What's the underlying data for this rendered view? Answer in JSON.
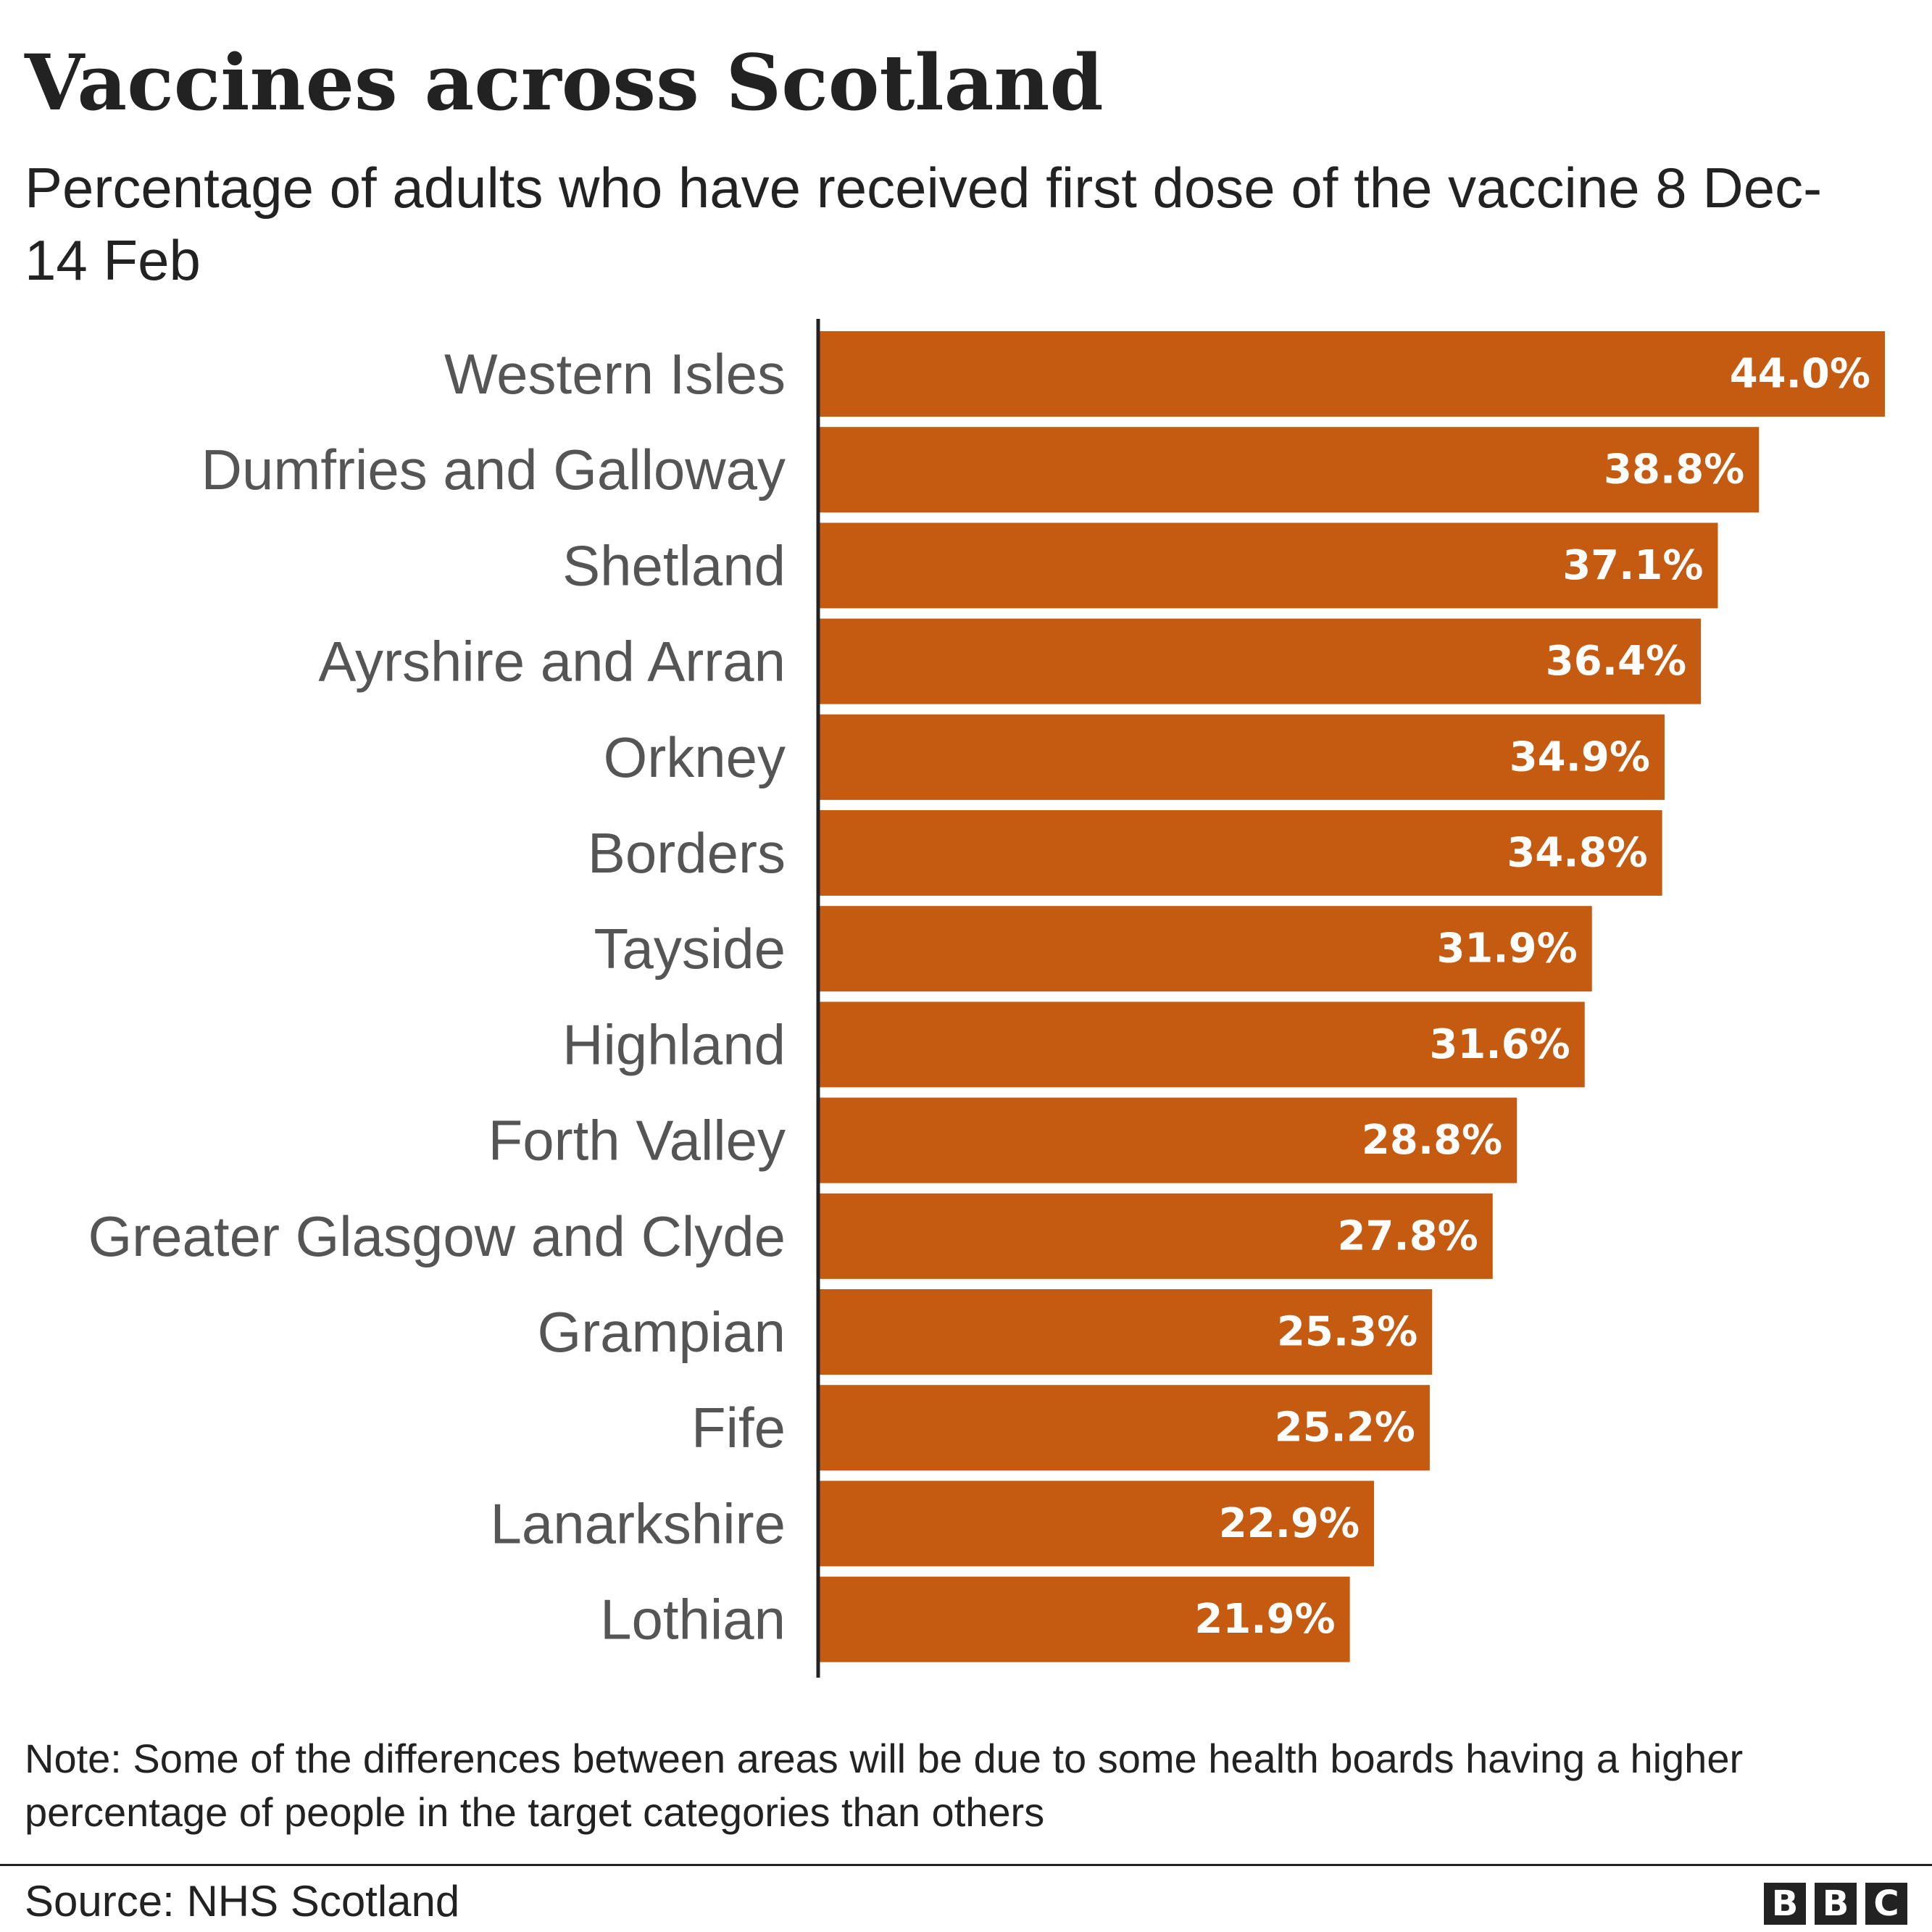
{
  "chart_data": {
    "type": "bar",
    "orientation": "horizontal",
    "title": "Vaccines across Scotland",
    "subtitle": "Percentage of adults who have received first dose of the vaccine 8 Dec-14 Feb",
    "categories": [
      "Western Isles",
      "Dumfries and Galloway",
      "Shetland",
      "Ayrshire and Arran",
      "Orkney",
      "Borders",
      "Tayside",
      "Highland",
      "Forth Valley",
      "Greater Glasgow and Clyde",
      "Grampian",
      "Fife",
      "Lanarkshire",
      "Lothian"
    ],
    "values": [
      44.0,
      38.8,
      37.1,
      36.4,
      34.9,
      34.8,
      31.9,
      31.6,
      28.8,
      27.8,
      25.3,
      25.2,
      22.9,
      21.9
    ],
    "value_labels": [
      "44.0%",
      "38.8%",
      "37.1%",
      "36.4%",
      "34.9%",
      "34.8%",
      "31.9%",
      "31.6%",
      "28.8%",
      "27.8%",
      "25.3%",
      "25.2%",
      "22.9%",
      "21.9%"
    ],
    "xlim": [
      0,
      44.0
    ],
    "xlabel": "",
    "ylabel": "",
    "grid": false,
    "bar_color": "#c55a11"
  },
  "note": "Note: Some of the differences between areas will be due to some health boards having a higher percentage of people in the target categories than others",
  "source": "Source: NHS Scotland",
  "logo": {
    "letters": [
      "B",
      "B",
      "C"
    ]
  }
}
